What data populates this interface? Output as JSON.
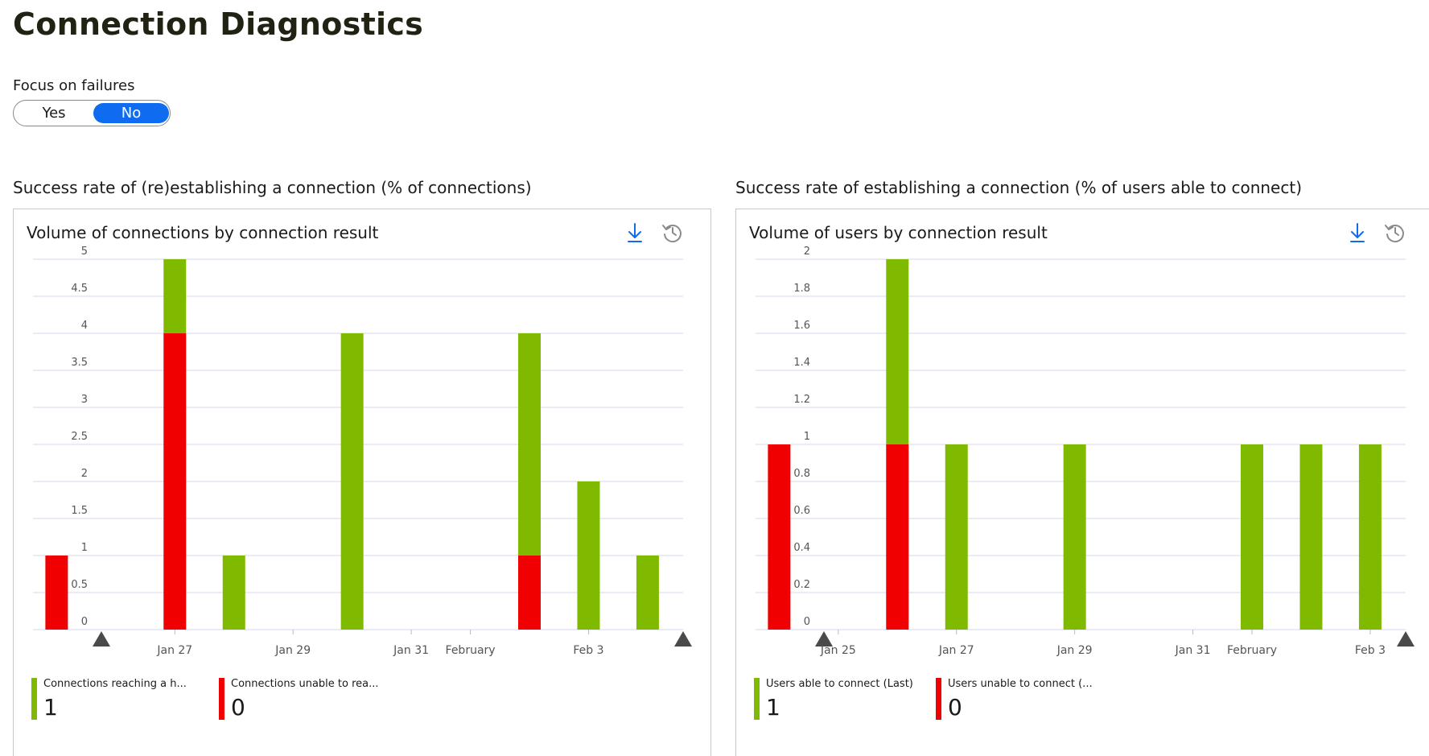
{
  "page": {
    "title": "Connection Diagnostics"
  },
  "focus_toggle": {
    "label": "Focus on failures",
    "options": [
      "Yes",
      "No"
    ],
    "selected": "No"
  },
  "colors": {
    "success": "#7fba00",
    "failure": "#f00000",
    "accent": "#0f6cf0",
    "gridline": "#d7d7f0"
  },
  "icons": {
    "download": "download-icon",
    "history": "history-icon"
  },
  "sections": [
    {
      "heading": "Success rate of (re)establishing a connection (% of connections)",
      "panel_title": "Volume of connections by connection result",
      "legend": [
        {
          "label": "Connections reaching a h...",
          "value": "1",
          "color": "#7fba00"
        },
        {
          "label": "Connections unable to rea...",
          "value": "0",
          "color": "#f00000"
        }
      ]
    },
    {
      "heading": "Success rate of establishing a connection (% of users able to connect)",
      "panel_title": "Volume of users by connection result",
      "legend": [
        {
          "label": "Users able to connect (Last)",
          "value": "1",
          "color": "#7fba00"
        },
        {
          "label": "Users unable to connect (...",
          "value": "0",
          "color": "#f00000"
        }
      ]
    }
  ],
  "chart_data": [
    {
      "type": "bar",
      "stacked": true,
      "ylim": [
        0,
        5
      ],
      "y_ticks": [
        "0",
        "0.5",
        "1",
        "1.5",
        "2",
        "2.5",
        "3",
        "3.5",
        "4",
        "4.5",
        "5"
      ],
      "x_ticks": [
        {
          "label": "Jan 27",
          "day": 4
        },
        {
          "label": "Jan 29",
          "day": 6
        },
        {
          "label": "Jan 31",
          "day": 8
        },
        {
          "label": "February",
          "day": 9
        },
        {
          "label": "Feb 3",
          "day": 11
        }
      ],
      "x_range_days": [
        1.6,
        12.6
      ],
      "categories": [
        "Jan 25",
        "Jan 27",
        "Jan 28",
        "Jan 30",
        "Feb 2",
        "Feb 3",
        "Feb 4"
      ],
      "days": [
        2,
        4,
        5,
        7,
        10,
        11,
        12
      ],
      "series": [
        {
          "color": "#f00000",
          "values": [
            1,
            4,
            0,
            0,
            1,
            0,
            0
          ]
        },
        {
          "color": "#7fba00",
          "values": [
            0,
            1,
            1,
            4,
            3,
            2,
            1
          ]
        }
      ],
      "grid": true
    },
    {
      "type": "bar",
      "stacked": true,
      "ylim": [
        0,
        2
      ],
      "y_ticks": [
        "0",
        "0.2",
        "0.4",
        "0.6",
        "0.8",
        "1",
        "1.2",
        "1.4",
        "1.6",
        "1.8",
        "2"
      ],
      "x_ticks": [
        {
          "label": "Jan 25",
          "day": 2
        },
        {
          "label": "Jan 27",
          "day": 4
        },
        {
          "label": "Jan 29",
          "day": 6
        },
        {
          "label": "Jan 31",
          "day": 8
        },
        {
          "label": "February",
          "day": 9
        },
        {
          "label": "Feb 3",
          "day": 11
        }
      ],
      "x_range_days": [
        0.6,
        11.6
      ],
      "categories": [
        "Jan 24",
        "Jan 26",
        "Jan 27",
        "Jan 29",
        "Feb 1",
        "Feb 2",
        "Feb 3"
      ],
      "days": [
        1,
        3,
        4,
        6,
        9,
        10,
        11
      ],
      "series": [
        {
          "color": "#f00000",
          "values": [
            1,
            1,
            0,
            0,
            0,
            0,
            0
          ]
        },
        {
          "color": "#7fba00",
          "values": [
            0,
            1,
            1,
            1,
            1,
            1,
            1
          ]
        }
      ],
      "grid": true
    }
  ]
}
